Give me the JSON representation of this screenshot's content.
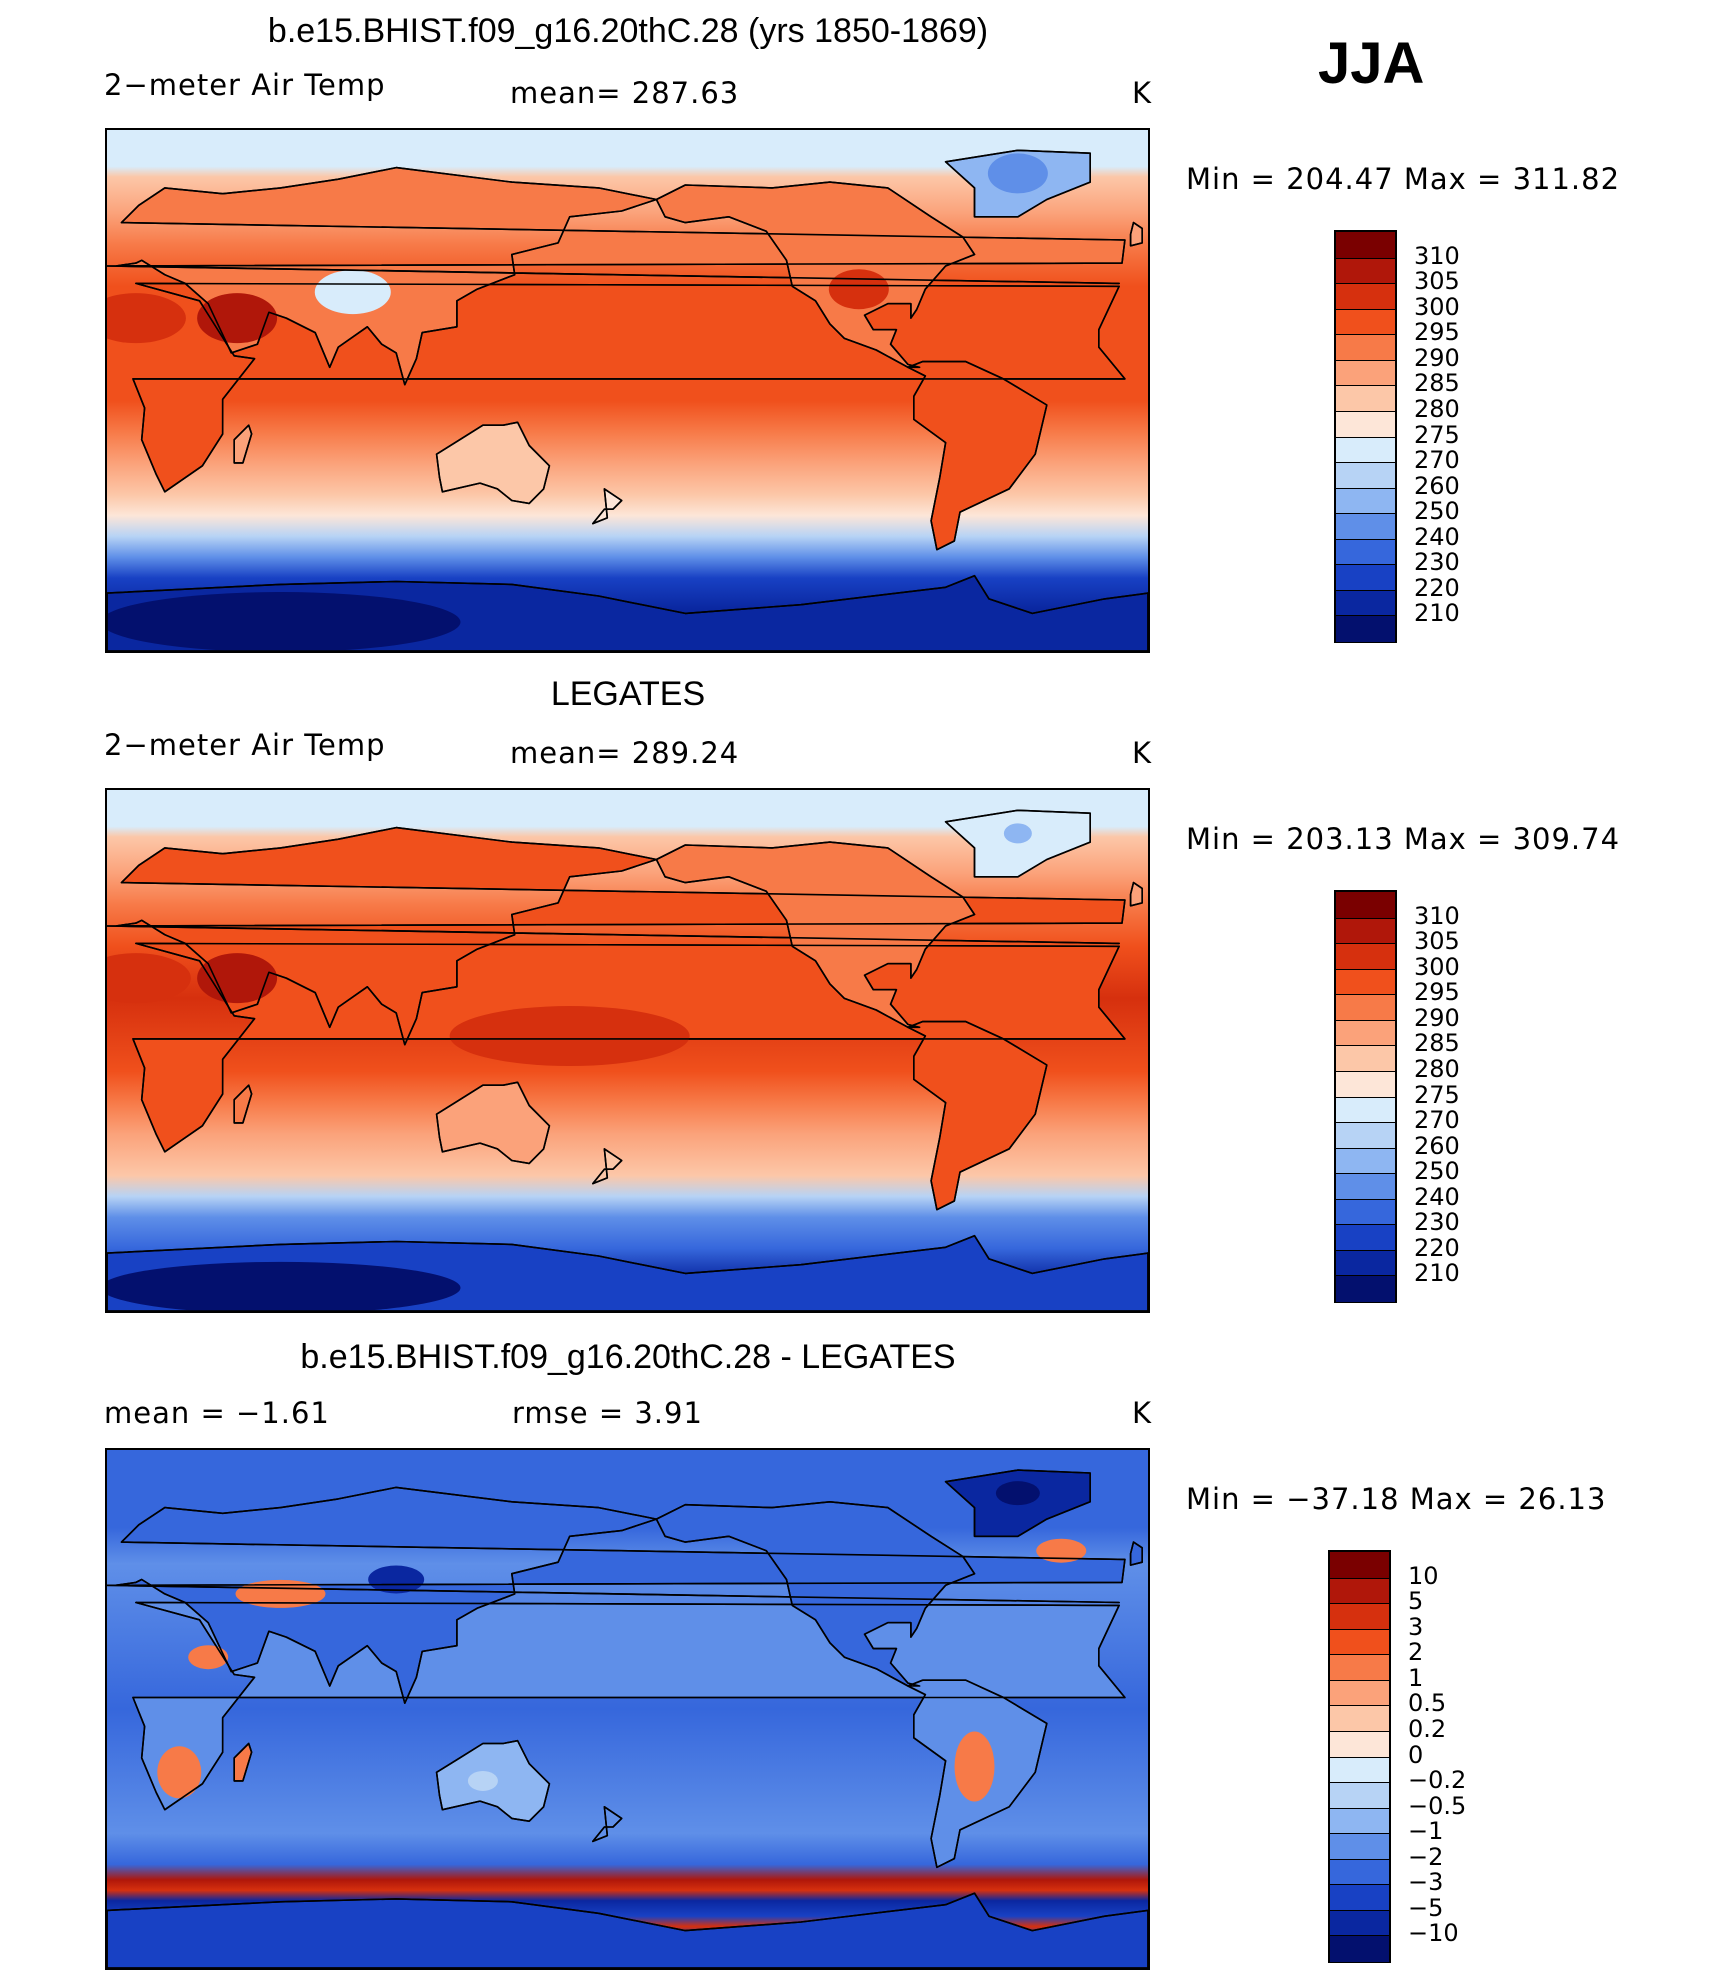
{
  "season": "JJA",
  "panels": [
    {
      "title": "b.e15.BHIST.f09_g16.20thC.28 (yrs 1850-1869)",
      "left_label": "2−meter Air Temp",
      "mid_label": "mean=  287.63",
      "units": "K",
      "range_label": "Min  =  204.47  Max  =  311.82",
      "colorbar": {
        "labels": [
          "310",
          "305",
          "300",
          "295",
          "290",
          "285",
          "280",
          "275",
          "270",
          "260",
          "250",
          "240",
          "230",
          "220",
          "210"
        ],
        "colors": [
          "#7a0000",
          "#b0170a",
          "#d6300e",
          "#f0501c",
          "#f77a48",
          "#fba27a",
          "#fcc7a8",
          "#fde6d8",
          "#d8ecfb",
          "#b7d3f5",
          "#8eb6f2",
          "#5f8fe8",
          "#3667dc",
          "#1841c4",
          "#0a27a0",
          "#03106e"
        ]
      },
      "chart_data": {
        "type": "heatmap",
        "title": "b.e15.BHIST.f09_g16.20thC.28 (yrs 1850-1869)",
        "variable": "2-meter Air Temp",
        "units": "K",
        "mean": 287.63,
        "min": 204.47,
        "max": 311.82,
        "levels": [
          210,
          220,
          230,
          240,
          250,
          260,
          270,
          275,
          280,
          285,
          290,
          295,
          300,
          305,
          310
        ]
      }
    },
    {
      "title": "LEGATES",
      "left_label": "2−meter Air Temp",
      "mid_label": "mean=  289.24",
      "units": "K",
      "range_label": "Min  =  203.13  Max  =  309.74",
      "colorbar": {
        "labels": [
          "310",
          "305",
          "300",
          "295",
          "290",
          "285",
          "280",
          "275",
          "270",
          "260",
          "250",
          "240",
          "230",
          "220",
          "210"
        ],
        "colors": [
          "#7a0000",
          "#b0170a",
          "#d6300e",
          "#f0501c",
          "#f77a48",
          "#fba27a",
          "#fcc7a8",
          "#fde6d8",
          "#d8ecfb",
          "#b7d3f5",
          "#8eb6f2",
          "#5f8fe8",
          "#3667dc",
          "#1841c4",
          "#0a27a0",
          "#03106e"
        ]
      },
      "chart_data": {
        "type": "heatmap",
        "title": "LEGATES",
        "variable": "2-meter Air Temp",
        "units": "K",
        "mean": 289.24,
        "min": 203.13,
        "max": 309.74,
        "levels": [
          210,
          220,
          230,
          240,
          250,
          260,
          270,
          275,
          280,
          285,
          290,
          295,
          300,
          305,
          310
        ]
      }
    },
    {
      "title": "b.e15.BHIST.f09_g16.20thC.28 - LEGATES",
      "left_label": "mean =    −1.61",
      "mid_label": "rmse =     3.91",
      "units": "K",
      "range_label": "Min  =  −37.18  Max  =    26.13",
      "colorbar": {
        "labels": [
          "10",
          "5",
          "3",
          "2",
          "1",
          "0.5",
          "0.2",
          "0",
          "−0.2",
          "−0.5",
          "−1",
          "−2",
          "−3",
          "−5",
          "−10"
        ],
        "colors": [
          "#7a0000",
          "#b0170a",
          "#d6300e",
          "#f0501c",
          "#f77a48",
          "#fba27a",
          "#fcc7a8",
          "#fde6d8",
          "#d8ecfb",
          "#b7d3f5",
          "#8eb6f2",
          "#5f8fe8",
          "#3667dc",
          "#1841c4",
          "#0a27a0",
          "#03106e"
        ]
      },
      "chart_data": {
        "type": "heatmap",
        "title": "b.e15.BHIST.f09_g16.20thC.28 - LEGATES",
        "units": "K",
        "mean": -1.61,
        "rmse": 3.91,
        "min": -37.18,
        "max": 26.13,
        "levels": [
          -10,
          -5,
          -3,
          -2,
          -1,
          -0.5,
          -0.2,
          0,
          0.2,
          0.5,
          1,
          2,
          3,
          5,
          10
        ]
      }
    }
  ]
}
